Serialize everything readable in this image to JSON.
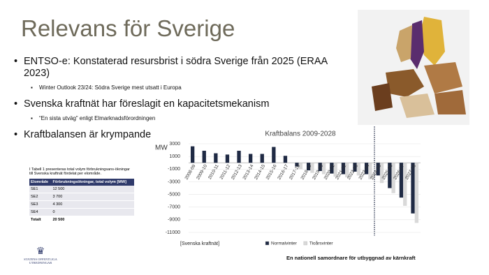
{
  "slide": {
    "title": "Relevans för Sverige",
    "bullets": [
      {
        "text": "ENTSO-e: Konstaterad resursbrist i södra Sverige från 2025 (ERAA 2023)",
        "sub": [
          "Winter Outlook 23/24: Södra Sverige mest utsatt i Europa"
        ]
      },
      {
        "text": "Svenska kraftnät har föreslagit en kapacitetsmekanism",
        "sub": [
          "“En sista utväg” enligt Elmarknadsförordningen"
        ]
      },
      {
        "text": "Kraftbalansen är krympande",
        "sub": []
      }
    ]
  },
  "table": {
    "caption": "I Tabell 1 presenteras total volym förbrukningsans-ökningar till Svenska kraftnät fördelat per elområde.",
    "header": [
      "Elområde",
      "Förbrukningsökningar, total volym [MW]"
    ],
    "rows": [
      [
        "SE1",
        "12 500"
      ],
      [
        "SE2",
        "3 700"
      ],
      [
        "SE3",
        "4 300"
      ],
      [
        "SE4",
        "0"
      ],
      [
        "Totalt",
        "20 500"
      ]
    ]
  },
  "logo": "STATENS OFFENTLIGA UTREDNINGAR",
  "footer": "En nationell samordnare för utbyggnad av kärnkraft",
  "chart_data": {
    "type": "bar",
    "title": "Kraftbalans 2009-2028",
    "ylabel": "MW",
    "source": "[Svenska kraftnät]",
    "categories": [
      "2008-09",
      "2009-10",
      "2010-11",
      "2011-12",
      "2012-13",
      "2013-14",
      "2014-15",
      "2015-16",
      "2016-17",
      "2017-18",
      "2018-19",
      "2019-20",
      "2020-21",
      "2021-22",
      "2022-23",
      "2023-24",
      "2024-25",
      "2025-26",
      "2026-27",
      "2027-28"
    ],
    "series": [
      {
        "name": "Normalvinter",
        "color": "#1f2a44",
        "values": [
          2600,
          1900,
          1500,
          1300,
          1900,
          1400,
          1400,
          2500,
          1100,
          -600,
          -1200,
          -1300,
          -1700,
          -1800,
          -1400,
          -1800,
          -2000,
          -4000,
          -5500,
          -8000
        ]
      },
      {
        "name": "Tioårsvinter",
        "color": "#d9d9d9",
        "values": [
          null,
          null,
          null,
          null,
          null,
          null,
          null,
          null,
          null,
          -1000,
          -1600,
          -1800,
          -2200,
          -2300,
          -2000,
          -2600,
          -3200,
          -4800,
          -6800,
          -9500
        ]
      }
    ],
    "ylim": [
      -11000,
      3000
    ],
    "yticks": [
      3000,
      1000,
      -1000,
      -3000,
      -5000,
      -7000,
      -9000,
      -11000
    ],
    "grid": true
  }
}
